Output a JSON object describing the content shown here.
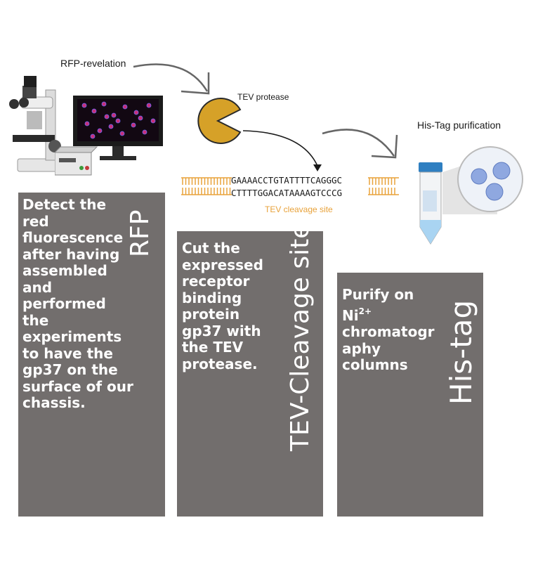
{
  "labels": {
    "rfp_revelation": "RFP-revelation",
    "tev_protease": "TEV protease",
    "his_tag_purification": "His-Tag purification",
    "tev_cleavage_site": "TEV cleavage site"
  },
  "dna": {
    "top_strand": "GAAAACCTGTATTTTCAGGGC",
    "bottom_strand": "CTTTTGGACATAAAAGTCCCG"
  },
  "panels": [
    {
      "title": "RFP",
      "text": "Detect the\nred\nfluorescence\nafter having\nassembled\nand\nperformed\nthe\nexperiments\nto have the\ngp37 on the\nsurface of our\nchassis."
    },
    {
      "title": "TEV-Cleavage site",
      "text": "Cut the\nexpressed\nreceptor\nbinding\nprotein\ngp37 with\nthe TEV\nprotease."
    },
    {
      "title": "His-tag",
      "text_line1": "Purify on",
      "text_ni": "Ni",
      "text_ni_sup": "2+",
      "text_rest": "chromatogr\naphy\ncolumns"
    }
  ],
  "colors": {
    "panel": "#726e6d",
    "pacman": "#d6a128",
    "dna_ticks": "#e8a23a",
    "cleavage_label": "#e8a23a",
    "tube_cap": "#2f7fc1",
    "protein": "#8fa8e0"
  }
}
